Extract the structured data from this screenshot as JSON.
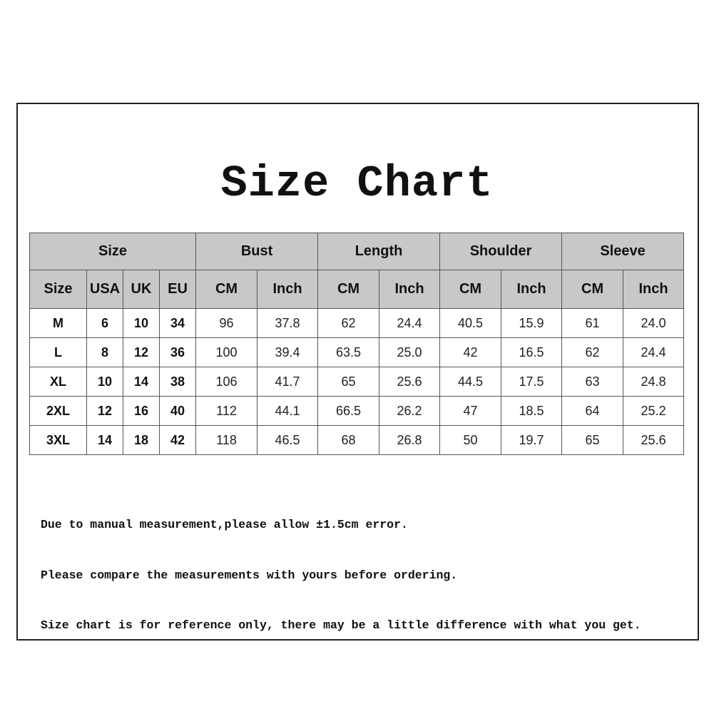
{
  "title": "Size Chart",
  "table": {
    "group_headers": [
      "Size",
      "Bust",
      "Length",
      "Shoulder",
      "Sleeve"
    ],
    "sub_headers": [
      "Size",
      "USA",
      "UK",
      "EU",
      "CM",
      "Inch",
      "CM",
      "Inch",
      "CM",
      "Inch",
      "CM",
      "Inch"
    ],
    "rows": [
      [
        "M",
        "6",
        "10",
        "34",
        "96",
        "37.8",
        "62",
        "24.4",
        "40.5",
        "15.9",
        "61",
        "24.0"
      ],
      [
        "L",
        "8",
        "12",
        "36",
        "100",
        "39.4",
        "63.5",
        "25.0",
        "42",
        "16.5",
        "62",
        "24.4"
      ],
      [
        "XL",
        "10",
        "14",
        "38",
        "106",
        "41.7",
        "65",
        "25.6",
        "44.5",
        "17.5",
        "63",
        "24.8"
      ],
      [
        "2XL",
        "12",
        "16",
        "40",
        "112",
        "44.1",
        "66.5",
        "26.2",
        "47",
        "18.5",
        "64",
        "25.2"
      ],
      [
        "3XL",
        "14",
        "18",
        "42",
        "118",
        "46.5",
        "68",
        "26.8",
        "50",
        "19.7",
        "65",
        "25.6"
      ]
    ]
  },
  "notes": [
    "Due to manual measurement,please allow ±1.5cm error.",
    "Please compare the measurements with yours before ordering.",
    "Size chart is for reference only, there may be a little difference with what you get."
  ],
  "colors": {
    "header_bg": "#c8c8c8",
    "border": "#555555",
    "frame": "#222222"
  }
}
